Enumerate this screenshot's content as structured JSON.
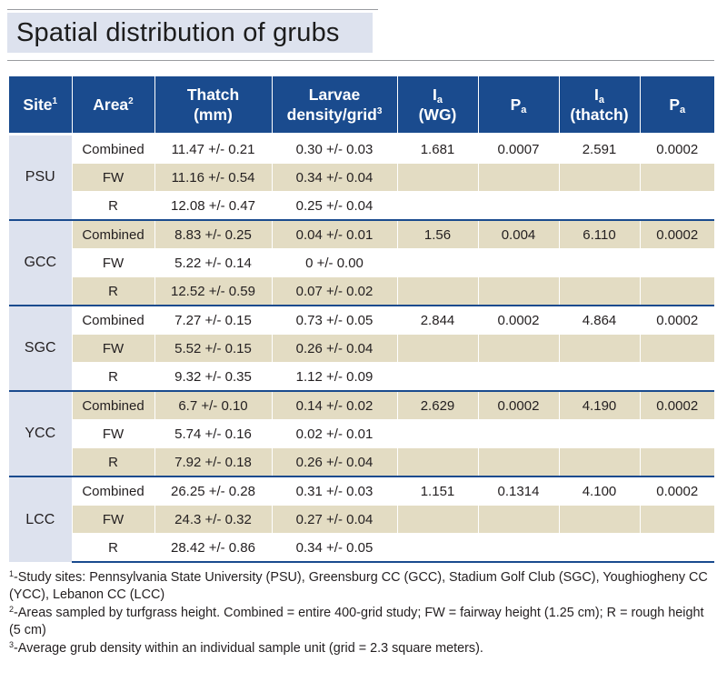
{
  "title": "Spatial distribution of grubs",
  "headers": {
    "site": "Site",
    "site_sup": "1",
    "area": "Area",
    "area_sup": "2",
    "thatch_line1": "Thatch",
    "thatch_line2": "(mm)",
    "larvae_line1": "Larvae",
    "larvae_line2": "density/grid",
    "larvae_sup": "3",
    "ia_wg_main": "I",
    "ia_wg_sub": "a",
    "ia_wg_line2": "(WG)",
    "pa1_main": "P",
    "pa1_sub": "a",
    "ia_thatch_main": "I",
    "ia_thatch_sub": "a",
    "ia_thatch_line2": "(thatch)",
    "pa2_main": "P",
    "pa2_sub": "a"
  },
  "groups": [
    {
      "site": "PSU",
      "rows": [
        {
          "area": "Combined",
          "thatch": "11.47 +/- 0.21",
          "larvae": "0.30 +/- 0.03",
          "ia_wg": "1.681",
          "pa1": "0.0007",
          "ia_thatch": "2.591",
          "pa2": "0.0002"
        },
        {
          "area": "FW",
          "thatch": "11.16 +/- 0.54",
          "larvae": "0.34 +/- 0.04",
          "ia_wg": "",
          "pa1": "",
          "ia_thatch": "",
          "pa2": ""
        },
        {
          "area": "R",
          "thatch": "12.08 +/- 0.47",
          "larvae": "0.25 +/- 0.04",
          "ia_wg": "",
          "pa1": "",
          "ia_thatch": "",
          "pa2": ""
        }
      ]
    },
    {
      "site": "GCC",
      "rows": [
        {
          "area": "Combined",
          "thatch": "8.83 +/- 0.25",
          "larvae": "0.04 +/- 0.01",
          "ia_wg": "1.56",
          "pa1": "0.004",
          "ia_thatch": "6.110",
          "pa2": "0.0002"
        },
        {
          "area": "FW",
          "thatch": "5.22 +/- 0.14",
          "larvae": "0 +/- 0.00",
          "ia_wg": "",
          "pa1": "",
          "ia_thatch": "",
          "pa2": ""
        },
        {
          "area": "R",
          "thatch": "12.52 +/- 0.59",
          "larvae": "0.07 +/- 0.02",
          "ia_wg": "",
          "pa1": "",
          "ia_thatch": "",
          "pa2": ""
        }
      ]
    },
    {
      "site": "SGC",
      "rows": [
        {
          "area": "Combined",
          "thatch": "7.27 +/- 0.15",
          "larvae": "0.73 +/- 0.05",
          "ia_wg": "2.844",
          "pa1": "0.0002",
          "ia_thatch": "4.864",
          "pa2": "0.0002"
        },
        {
          "area": "FW",
          "thatch": "5.52 +/- 0.15",
          "larvae": "0.26 +/- 0.04",
          "ia_wg": "",
          "pa1": "",
          "ia_thatch": "",
          "pa2": ""
        },
        {
          "area": "R",
          "thatch": "9.32 +/- 0.35",
          "larvae": "1.12 +/- 0.09",
          "ia_wg": "",
          "pa1": "",
          "ia_thatch": "",
          "pa2": ""
        }
      ]
    },
    {
      "site": "YCC",
      "rows": [
        {
          "area": "Combined",
          "thatch": "6.7 +/- 0.10",
          "larvae": "0.14 +/- 0.02",
          "ia_wg": "2.629",
          "pa1": "0.0002",
          "ia_thatch": "4.190",
          "pa2": "0.0002"
        },
        {
          "area": "FW",
          "thatch": "5.74 +/- 0.16",
          "larvae": "0.02 +/- 0.01",
          "ia_wg": "",
          "pa1": "",
          "ia_thatch": "",
          "pa2": ""
        },
        {
          "area": "R",
          "thatch": "7.92 +/- 0.18",
          "larvae": "0.26 +/- 0.04",
          "ia_wg": "",
          "pa1": "",
          "ia_thatch": "",
          "pa2": ""
        }
      ]
    },
    {
      "site": "LCC",
      "rows": [
        {
          "area": "Combined",
          "thatch": "26.25 +/- 0.28",
          "larvae": "0.31 +/- 0.03",
          "ia_wg": "1.151",
          "pa1": "0.1314",
          "ia_thatch": "4.100",
          "pa2": "0.0002"
        },
        {
          "area": "FW",
          "thatch": "24.3 +/- 0.32",
          "larvae": "0.27 +/- 0.04",
          "ia_wg": "",
          "pa1": "",
          "ia_thatch": "",
          "pa2": ""
        },
        {
          "area": "R",
          "thatch": "28.42 +/- 0.86",
          "larvae": "0.34 +/- 0.05",
          "ia_wg": "",
          "pa1": "",
          "ia_thatch": "",
          "pa2": ""
        }
      ]
    }
  ],
  "footnotes": [
    {
      "mark": "1",
      "text": "-Study sites: Pennsylvania State University (PSU), Greensburg CC (GCC), Stadium Golf Club (SGC), Youghiogheny CC (YCC), Lebanon CC (LCC)"
    },
    {
      "mark": "2",
      "text": "-Areas sampled by turfgrass height.  Combined = entire 400-grid study; FW = fairway height (1.25 cm); R = rough height (5 cm)"
    },
    {
      "mark": "3",
      "text": "-Average grub density within an individual sample unit (grid = 2.3 square meters)."
    }
  ],
  "colors": {
    "header_bg": "#1a4b8e",
    "site_cell_bg": "#dde2ee",
    "stripe_tan": "#e3dcc3",
    "title_bg": "#dde2ee"
  }
}
